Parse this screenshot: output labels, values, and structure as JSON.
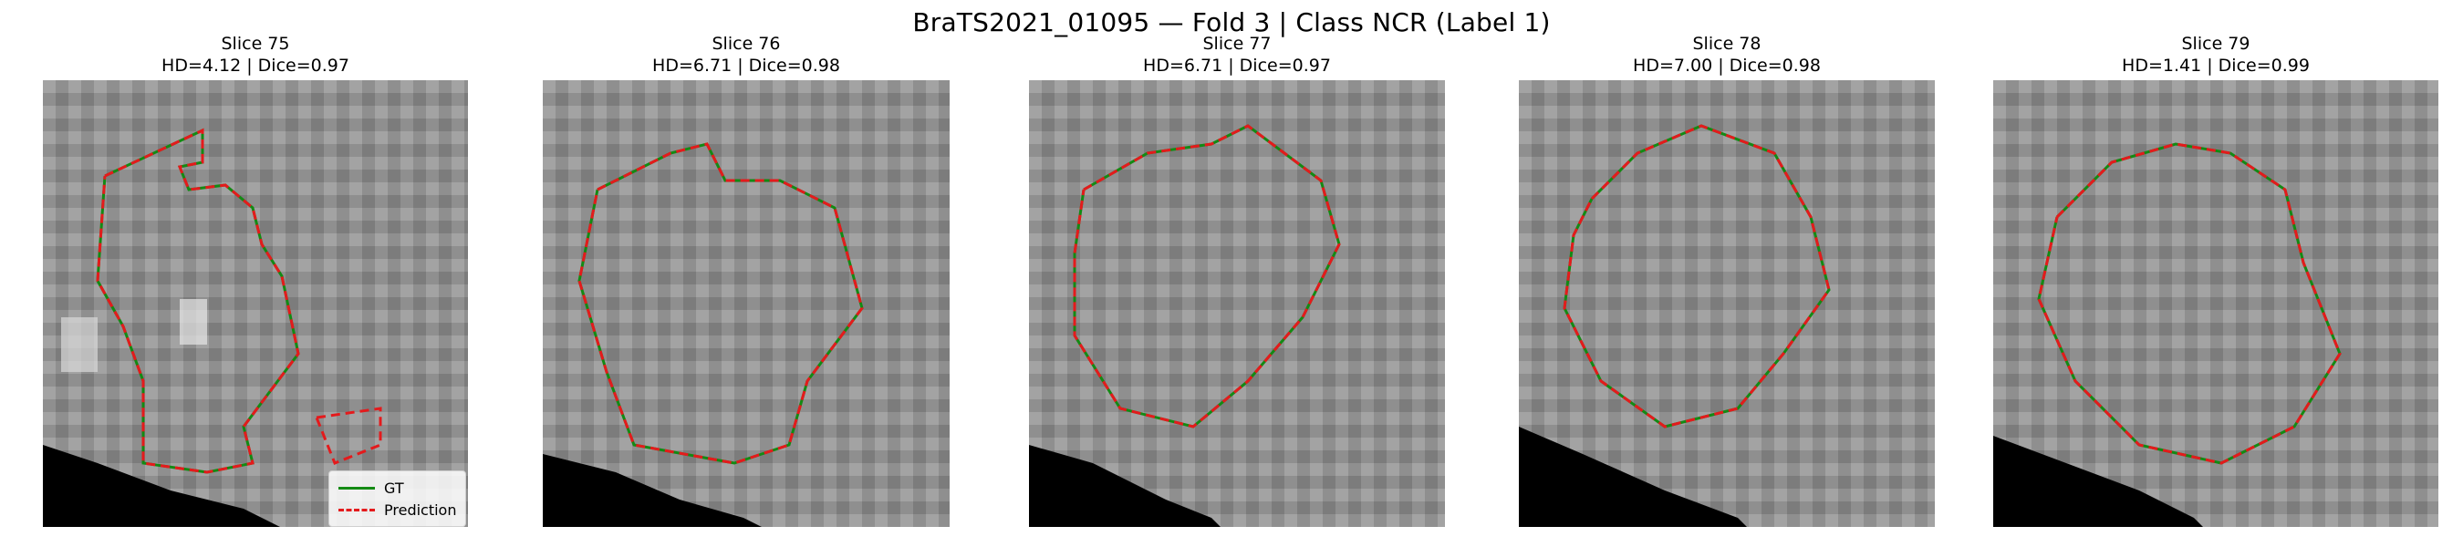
{
  "figure": {
    "suptitle": "BraTS2021_01095 — Fold 3 | Class NCR (Label 1)"
  },
  "panels": [
    {
      "slice": "Slice 75",
      "metrics": "HD=4.12 | Dice=0.97"
    },
    {
      "slice": "Slice 76",
      "metrics": "HD=6.71 | Dice=0.98"
    },
    {
      "slice": "Slice 77",
      "metrics": "HD=6.71 | Dice=0.97"
    },
    {
      "slice": "Slice 78",
      "metrics": "HD=7.00 | Dice=0.98"
    },
    {
      "slice": "Slice 79",
      "metrics": "HD=1.41 | Dice=0.99"
    }
  ],
  "legend": {
    "gt_label": "GT",
    "pred_label": "Prediction"
  },
  "colors": {
    "gt": "#138a13",
    "prediction": "#e41a1c"
  }
}
